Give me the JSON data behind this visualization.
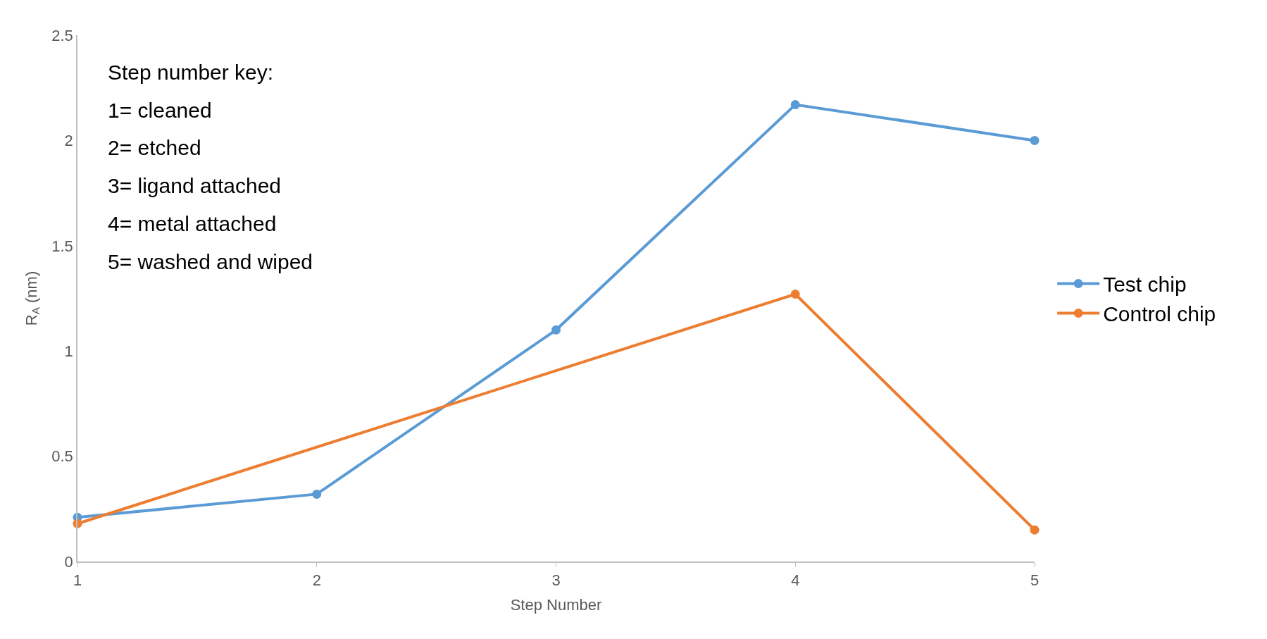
{
  "chart_data": {
    "type": "line",
    "xlabel": "Step Number",
    "ylabel": "R$_{A}$ (nm)",
    "x": [
      1,
      2,
      3,
      4,
      5
    ],
    "series": [
      {
        "name": "Test chip",
        "color": "#5b9bd5",
        "values": [
          0.21,
          0.32,
          1.1,
          2.17,
          2.0
        ]
      },
      {
        "name": "Control chip",
        "color": "#ed7d31",
        "x": [
          1,
          4,
          5
        ],
        "values": [
          0.18,
          1.27,
          0.15
        ]
      }
    ],
    "xlim": [
      1,
      5
    ],
    "xticks": [
      1,
      2,
      3,
      4,
      5
    ],
    "ylim": [
      0,
      2.5
    ],
    "yticks": [
      0,
      0.5,
      1,
      1.5,
      2,
      2.5
    ],
    "legend": "right",
    "marker": "circle",
    "line_style": "solid",
    "annotations": [
      "Step number key:",
      "1= cleaned",
      "2= etched",
      "3= ligand attached",
      "4= metal attached",
      "5= washed and wiped"
    ]
  }
}
